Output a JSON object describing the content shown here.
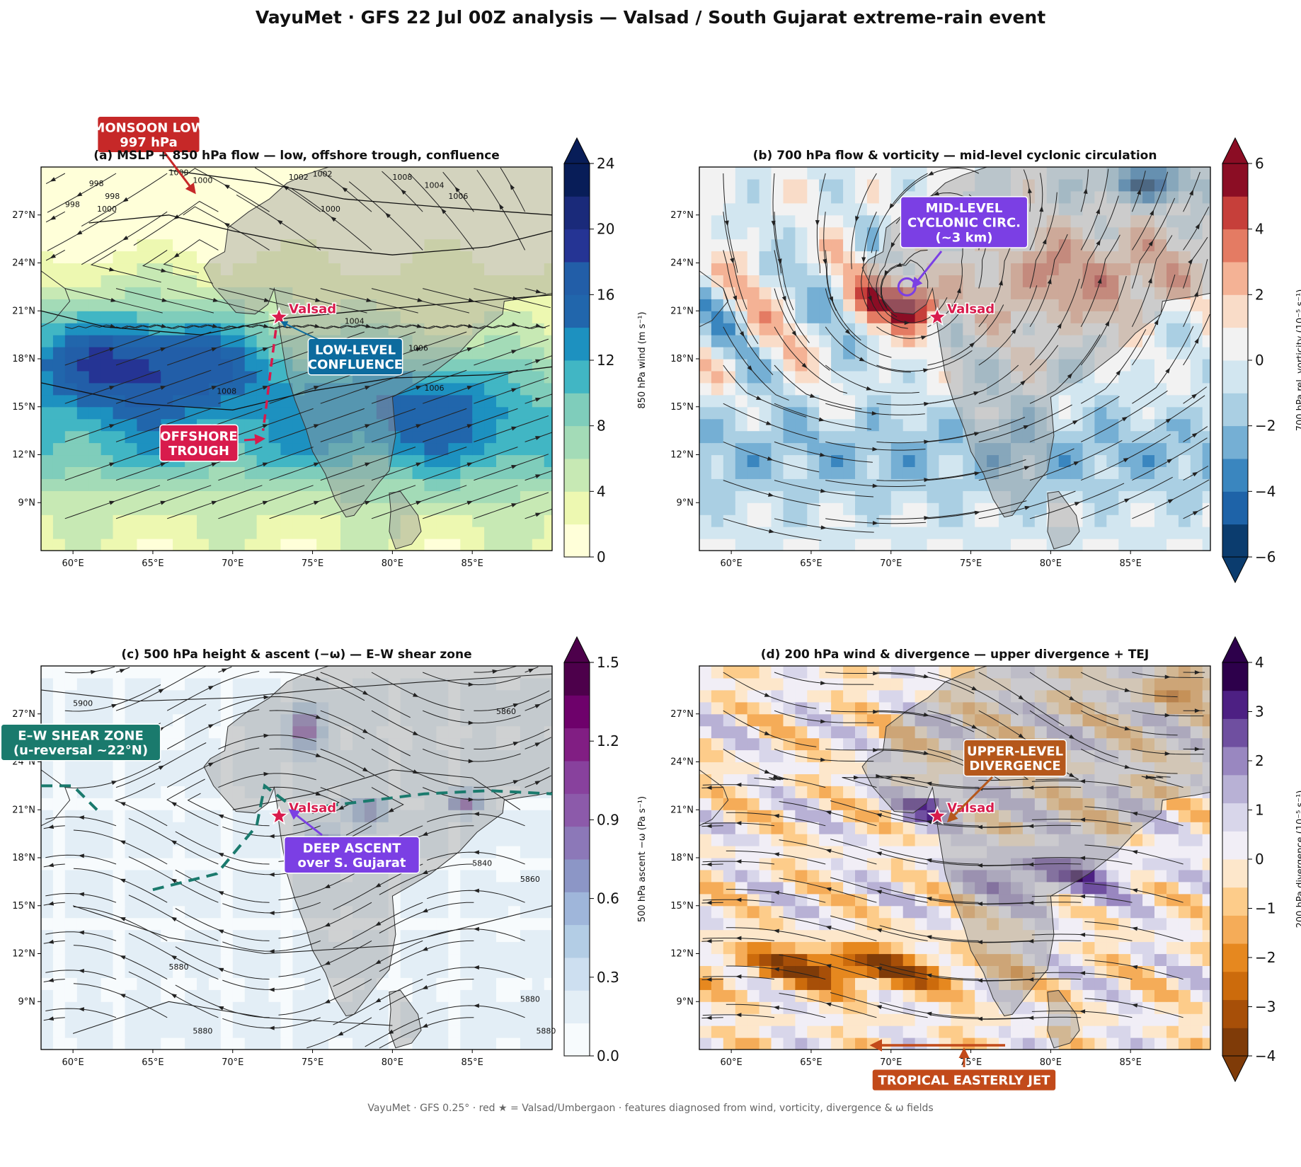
{
  "title": "VayuMet · GFS 22 Jul 00Z analysis — Valsad / South Gujarat extreme-rain event",
  "footer": "VayuMet · GFS 0.25° · red ★ = Valsad/Umbergaon · features diagnosed from wind, vorticity, divergence & ω fields",
  "axes": {
    "lon_ticks": [
      "60°E",
      "65°E",
      "70°E",
      "75°E",
      "80°E",
      "85°E"
    ],
    "lat_ticks": [
      "27°N",
      "24°N",
      "21°N",
      "18°N",
      "15°N",
      "12°N",
      "9°N"
    ]
  },
  "station": {
    "label": "Valsad",
    "lon": 72.9,
    "lat": 20.6
  },
  "panels": [
    {
      "id": "a",
      "title": "(a) MSLP + 850 hPa flow — low, offshore trough, confluence",
      "colorbar": {
        "label": "850 hPa wind (m s⁻¹)",
        "ticks": [
          "0",
          "4",
          "8",
          "12",
          "16",
          "20",
          "24"
        ],
        "colors": [
          "#ffffd9",
          "#edf8b1",
          "#c7e9b4",
          "#a3dbb7",
          "#7fcdbb",
          "#41b6c4",
          "#1d91c0",
          "#2166ac",
          "#225ea8",
          "#253494",
          "#1a2a7a",
          "#081d58"
        ]
      },
      "annotations": [
        {
          "lines": [
            "MONSOON LOW",
            "997 hPa"
          ],
          "color": "#c62828"
        },
        {
          "lines": [
            "LOW-LEVEL",
            "CONFLUENCE"
          ],
          "color": "#0d6b9e"
        },
        {
          "lines": [
            "OFFSHORE",
            "TROUGH"
          ],
          "color": "#d81b4c"
        }
      ],
      "contour_labels": [
        "998",
        "1000",
        "1000",
        "998",
        "998",
        "1000",
        "1002",
        "1002",
        "1008",
        "1004",
        "1006",
        "1000",
        "1004",
        "1006",
        "1006",
        "1008"
      ]
    },
    {
      "id": "b",
      "title": "(b) 700 hPa flow & vorticity — mid-level cyclonic circulation",
      "colorbar": {
        "label": "700 hPa rel. vorticity (10⁻⁵ s⁻¹)",
        "ticks": [
          "−6",
          "−4",
          "−2",
          "0",
          "2",
          "4",
          "6"
        ],
        "colors": [
          "#0b3c6e",
          "#1e63a8",
          "#3a86bf",
          "#75afd4",
          "#aacfe3",
          "#d2e6f0",
          "#f2f2f2",
          "#f9dcc8",
          "#f4b295",
          "#e47b63",
          "#c63f3a",
          "#8b0d24"
        ]
      },
      "annotations": [
        {
          "lines": [
            "MID-LEVEL",
            "CYCLONIC CIRC.",
            "(~3 km)"
          ],
          "color": "#7b3fe4"
        }
      ]
    },
    {
      "id": "c",
      "title": "(c) 500 hPa height & ascent (−ω) — E–W shear zone",
      "colorbar": {
        "label": "500 hPa ascent −ω (Pa s⁻¹)",
        "ticks": [
          "0.0",
          "0.3",
          "0.6",
          "0.9",
          "1.2",
          "1.5"
        ],
        "colors": [
          "#f7fbfd",
          "#e3eef6",
          "#cddff0",
          "#b3cde5",
          "#9fb6da",
          "#8c96c6",
          "#8c78b8",
          "#8c5aaa",
          "#88419d",
          "#811e83",
          "#6e016b",
          "#4d004b"
        ]
      },
      "annotations": [
        {
          "lines": [
            "E–W SHEAR ZONE",
            "(u-reversal ~22°N)"
          ],
          "color": "#1a7a6d"
        },
        {
          "lines": [
            "DEEP ASCENT",
            "over S. Gujarat"
          ],
          "color": "#7b3fe4"
        }
      ],
      "contour_labels": [
        "5900",
        "5860",
        "5840",
        "5860",
        "5880",
        "5880",
        "5880",
        "5880"
      ]
    },
    {
      "id": "d",
      "title": "(d) 200 hPa wind & divergence — upper divergence + TEJ",
      "colorbar": {
        "label": "200 hPa divergence (10⁻⁵ s⁻¹)",
        "ticks": [
          "−4",
          "−3",
          "−2",
          "−1",
          "0",
          "1",
          "2",
          "3",
          "4"
        ],
        "colors": [
          "#7f3b08",
          "#a74f08",
          "#cc6b0c",
          "#e6881f",
          "#f5ac58",
          "#fdcc8a",
          "#fde7cb",
          "#f1eef6",
          "#d8d6ea",
          "#b8b1d5",
          "#9987c0",
          "#6f4fa0",
          "#4d2083",
          "#2d004b"
        ]
      },
      "annotations": [
        {
          "lines": [
            "UPPER-LEVEL",
            "DIVERGENCE"
          ],
          "color": "#b5581c"
        },
        {
          "lines": [
            "TROPICAL EASTERLY JET"
          ],
          "color": "#c24a1a"
        }
      ]
    }
  ]
}
